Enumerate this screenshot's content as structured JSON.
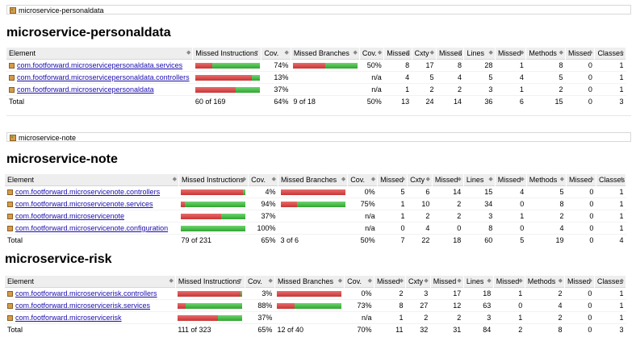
{
  "colors": {
    "missed": "#d64545",
    "covered": "#3cb43c",
    "header_bg": "#eeeeee",
    "link": "#1a0dab"
  },
  "icons": {
    "package": "package-icon"
  },
  "headers": {
    "element": "Element",
    "missed_instructions": "Missed Instructions",
    "cov": "Cov.",
    "missed_branches": "Missed Branches",
    "cov2": "Cov.",
    "missed_cxty": "Missed",
    "cxty": "Cxty",
    "missed_lines": "Missed",
    "lines": "Lines",
    "missed_methods": "Missed",
    "methods": "Methods",
    "missed_classes": "Missed",
    "classes": "Classes"
  },
  "reports": [
    {
      "breadcrumb": "microservice-personaldata",
      "title": "microservice-personaldata",
      "rows": [
        {
          "element": "com.footforward.microservicepersonaldata.services",
          "instr_missed_frac": 0.26,
          "instr_covered_frac": 0.74,
          "cov": "74%",
          "br_missed_frac": 0.5,
          "br_covered_frac": 0.5,
          "cov2": "50%",
          "missed_cxty": "8",
          "cxty": "17",
          "missed_lines": "8",
          "lines": "28",
          "missed_methods": "1",
          "methods": "8",
          "missed_classes": "0",
          "classes": "1"
        },
        {
          "element": "com.footforward.microservicepersonaldata.controllers",
          "instr_missed_frac": 0.87,
          "instr_covered_frac": 0.13,
          "cov": "13%",
          "br_missed_frac": 0,
          "br_covered_frac": 0,
          "cov2": "n/a",
          "missed_cxty": "4",
          "cxty": "5",
          "missed_lines": "4",
          "lines": "5",
          "missed_methods": "4",
          "methods": "5",
          "missed_classes": "0",
          "classes": "1"
        },
        {
          "element": "com.footforward.microservicepersonaldata",
          "instr_missed_frac": 0.63,
          "instr_covered_frac": 0.37,
          "cov": "37%",
          "br_missed_frac": 0,
          "br_covered_frac": 0,
          "cov2": "n/a",
          "missed_cxty": "1",
          "cxty": "2",
          "missed_lines": "2",
          "lines": "3",
          "missed_methods": "1",
          "methods": "2",
          "missed_classes": "0",
          "classes": "1"
        }
      ],
      "total": {
        "label": "Total",
        "instr": "60 of 169",
        "cov": "64%",
        "branches": "9 of 18",
        "cov2": "50%",
        "missed_cxty": "13",
        "cxty": "24",
        "missed_lines": "14",
        "lines": "36",
        "missed_methods": "6",
        "methods": "15",
        "missed_classes": "0",
        "classes": "3"
      }
    },
    {
      "breadcrumb": "microservice-note",
      "title": "microservice-note",
      "rows": [
        {
          "element": "com.footforward.microservicenote.controllers",
          "instr_missed_frac": 0.96,
          "instr_covered_frac": 0.04,
          "cov": "4%",
          "br_missed_frac": 1,
          "br_covered_frac": 0,
          "cov2": "0%",
          "missed_cxty": "5",
          "cxty": "6",
          "missed_lines": "14",
          "lines": "15",
          "missed_methods": "4",
          "methods": "5",
          "missed_classes": "0",
          "classes": "1"
        },
        {
          "element": "com.footforward.microservicenote.services",
          "instr_missed_frac": 0.06,
          "instr_covered_frac": 0.94,
          "cov": "94%",
          "br_missed_frac": 0.25,
          "br_covered_frac": 0.75,
          "cov2": "75%",
          "missed_cxty": "1",
          "cxty": "10",
          "missed_lines": "2",
          "lines": "34",
          "missed_methods": "0",
          "methods": "8",
          "missed_classes": "0",
          "classes": "1"
        },
        {
          "element": "com.footforward.microservicenote",
          "instr_missed_frac": 0.63,
          "instr_covered_frac": 0.37,
          "cov": "37%",
          "br_missed_frac": 0,
          "br_covered_frac": 0,
          "cov2": "n/a",
          "missed_cxty": "1",
          "cxty": "2",
          "missed_lines": "2",
          "lines": "3",
          "missed_methods": "1",
          "methods": "2",
          "missed_classes": "0",
          "classes": "1"
        },
        {
          "element": "com.footforward.microservicenote.configuration",
          "instr_missed_frac": 0,
          "instr_covered_frac": 1,
          "cov": "100%",
          "br_missed_frac": 0,
          "br_covered_frac": 0,
          "cov2": "n/a",
          "missed_cxty": "0",
          "cxty": "4",
          "missed_lines": "0",
          "lines": "8",
          "missed_methods": "0",
          "methods": "4",
          "missed_classes": "0",
          "classes": "1"
        }
      ],
      "total": {
        "label": "Total",
        "instr": "79 of 231",
        "cov": "65%",
        "branches": "3 of 6",
        "cov2": "50%",
        "missed_cxty": "7",
        "cxty": "22",
        "missed_lines": "18",
        "lines": "60",
        "missed_methods": "5",
        "methods": "19",
        "missed_classes": "0",
        "classes": "4"
      }
    },
    {
      "breadcrumb": "",
      "title": "microservice-risk",
      "rows": [
        {
          "element": "com.footforward.microservicerisk.controllers",
          "instr_missed_frac": 0.97,
          "instr_covered_frac": 0.03,
          "cov": "3%",
          "br_missed_frac": 1,
          "br_covered_frac": 0,
          "cov2": "0%",
          "missed_cxty": "2",
          "cxty": "3",
          "missed_lines": "17",
          "lines": "18",
          "missed_methods": "1",
          "methods": "2",
          "missed_classes": "0",
          "classes": "1"
        },
        {
          "element": "com.footforward.microservicerisk.services",
          "instr_missed_frac": 0.12,
          "instr_covered_frac": 0.88,
          "cov": "88%",
          "br_missed_frac": 0.27,
          "br_covered_frac": 0.73,
          "cov2": "73%",
          "missed_cxty": "8",
          "cxty": "27",
          "missed_lines": "12",
          "lines": "63",
          "missed_methods": "0",
          "methods": "4",
          "missed_classes": "0",
          "classes": "1"
        },
        {
          "element": "com.footforward.microservicerisk",
          "instr_missed_frac": 0.63,
          "instr_covered_frac": 0.37,
          "cov": "37%",
          "br_missed_frac": 0,
          "br_covered_frac": 0,
          "cov2": "n/a",
          "missed_cxty": "1",
          "cxty": "2",
          "missed_lines": "2",
          "lines": "3",
          "missed_methods": "1",
          "methods": "2",
          "missed_classes": "0",
          "classes": "1"
        }
      ],
      "total": {
        "label": "Total",
        "instr": "111 of 323",
        "cov": "65%",
        "branches": "12 of 40",
        "cov2": "70%",
        "missed_cxty": "11",
        "cxty": "32",
        "missed_lines": "31",
        "lines": "84",
        "missed_methods": "2",
        "methods": "8",
        "missed_classes": "0",
        "classes": "3"
      }
    }
  ]
}
